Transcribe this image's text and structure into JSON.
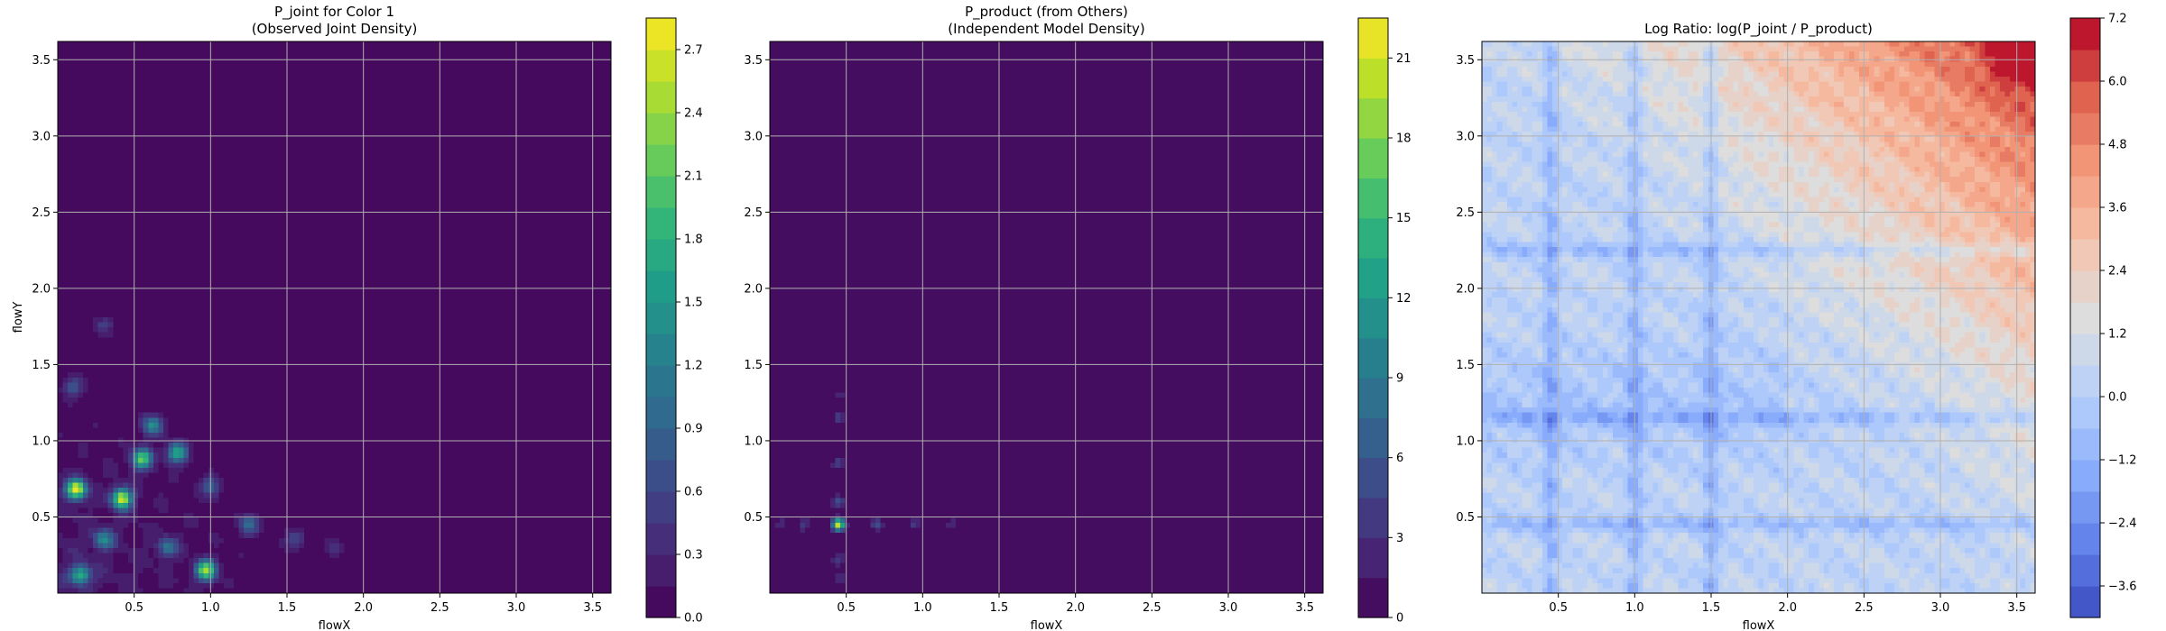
{
  "chart_data": [
    {
      "type": "heatmap",
      "title_lines": [
        "P_joint for Color 1",
        "(Observed Joint Density)"
      ],
      "xlabel": "flowX",
      "ylabel": "flowY",
      "xlim": [
        0.0,
        3.62
      ],
      "ylim": [
        0.0,
        3.62
      ],
      "x_ticks": [
        "0.5",
        "1.0",
        "1.5",
        "2.0",
        "2.5",
        "3.0",
        "3.5"
      ],
      "y_ticks": [
        "0.5",
        "1.0",
        "1.5",
        "2.0",
        "2.5",
        "3.0",
        "3.5"
      ],
      "grid": true,
      "colormap": "viridis",
      "colorbar": {
        "range": [
          0.0,
          2.85
        ],
        "levels": 19,
        "ticks": [
          "0.0",
          "0.3",
          "0.6",
          "0.9",
          "1.2",
          "1.5",
          "1.8",
          "2.1",
          "2.4",
          "2.7"
        ]
      },
      "density_peaks": [
        {
          "x": 0.12,
          "y": 0.68,
          "value": 2.7
        },
        {
          "x": 0.42,
          "y": 0.62,
          "value": 2.6
        },
        {
          "x": 0.55,
          "y": 0.88,
          "value": 2.1
        },
        {
          "x": 0.78,
          "y": 0.92,
          "value": 1.6
        },
        {
          "x": 0.97,
          "y": 0.15,
          "value": 2.3
        },
        {
          "x": 0.15,
          "y": 0.12,
          "value": 1.7
        },
        {
          "x": 0.62,
          "y": 1.1,
          "value": 1.3
        },
        {
          "x": 0.3,
          "y": 0.35,
          "value": 1.2
        },
        {
          "x": 0.72,
          "y": 0.3,
          "value": 1.0
        },
        {
          "x": 1.25,
          "y": 0.45,
          "value": 0.9
        },
        {
          "x": 1.0,
          "y": 0.7,
          "value": 0.8
        },
        {
          "x": 0.1,
          "y": 1.35,
          "value": 0.7
        },
        {
          "x": 0.3,
          "y": 1.75,
          "value": 0.5
        },
        {
          "x": 1.55,
          "y": 0.35,
          "value": 0.6
        },
        {
          "x": 1.8,
          "y": 0.3,
          "value": 0.4
        }
      ]
    },
    {
      "type": "heatmap",
      "title_lines": [
        "P_product (from Others)",
        "(Independent Model Density)"
      ],
      "xlabel": "flowX",
      "ylabel": "",
      "xlim": [
        0.0,
        3.62
      ],
      "ylim": [
        0.0,
        3.62
      ],
      "x_ticks": [
        "0.5",
        "1.0",
        "1.5",
        "2.0",
        "2.5",
        "3.0",
        "3.5"
      ],
      "y_ticks": [
        "0.5",
        "1.0",
        "1.5",
        "2.0",
        "2.5",
        "3.0",
        "3.5"
      ],
      "grid": true,
      "colormap": "viridis",
      "colorbar": {
        "range": [
          0,
          22.5
        ],
        "levels": 15,
        "ticks": [
          "0",
          "3",
          "6",
          "9",
          "12",
          "15",
          "18",
          "21"
        ]
      },
      "density_peaks": [
        {
          "x": 0.45,
          "y": 0.45,
          "value": 21.0
        },
        {
          "x": 0.45,
          "y": 0.6,
          "value": 6.0
        },
        {
          "x": 0.45,
          "y": 0.85,
          "value": 4.5
        },
        {
          "x": 0.45,
          "y": 1.15,
          "value": 4.0
        },
        {
          "x": 0.45,
          "y": 1.3,
          "value": 3.0
        },
        {
          "x": 0.45,
          "y": 0.22,
          "value": 4.5
        },
        {
          "x": 0.45,
          "y": 0.1,
          "value": 3.5
        },
        {
          "x": 0.7,
          "y": 0.45,
          "value": 5.0
        },
        {
          "x": 0.95,
          "y": 0.45,
          "value": 4.0
        },
        {
          "x": 1.2,
          "y": 0.45,
          "value": 3.0
        },
        {
          "x": 0.22,
          "y": 0.45,
          "value": 4.0
        },
        {
          "x": 0.08,
          "y": 0.45,
          "value": 3.0
        }
      ]
    },
    {
      "type": "heatmap",
      "title_lines": [
        "Log Ratio: log(P_joint / P_product)"
      ],
      "xlabel": "flowX",
      "ylabel": "",
      "xlim": [
        0.0,
        3.62
      ],
      "ylim": [
        0.0,
        3.62
      ],
      "x_ticks": [
        "0.5",
        "1.0",
        "1.5",
        "2.0",
        "2.5",
        "3.0",
        "3.5"
      ],
      "y_ticks": [
        "0.5",
        "1.0",
        "1.5",
        "2.0",
        "2.5",
        "3.0",
        "3.5"
      ],
      "grid": true,
      "colormap": "coolwarm",
      "colorbar": {
        "range": [
          -4.2,
          7.2
        ],
        "levels": 19,
        "ticks": [
          "−3.6",
          "−2.4",
          "−1.2",
          "0.0",
          "1.2",
          "2.4",
          "3.6",
          "4.8",
          "6.0",
          "7.2"
        ]
      },
      "features": {
        "max_at": {
          "x": 3.5,
          "y": 3.5,
          "value": 7.2
        },
        "blue_bands_x": [
          0.45,
          1.0,
          1.5
        ],
        "blue_bands_y": [
          0.45,
          1.15,
          2.25
        ],
        "red_corner": "top-right"
      }
    }
  ]
}
